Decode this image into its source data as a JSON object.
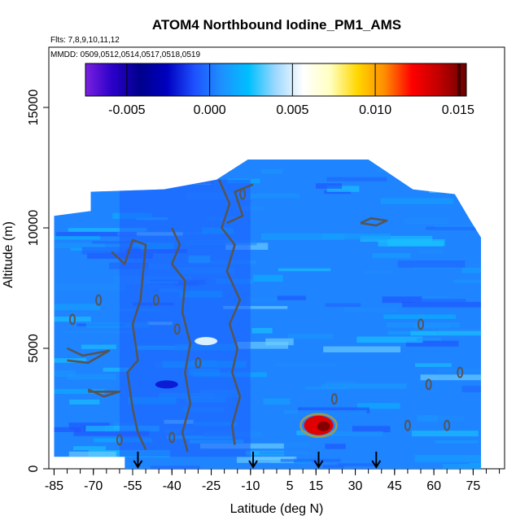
{
  "chart_data": {
    "type": "heatmap",
    "title": "ATOM4 Northbound Iodine_PM1_AMS",
    "flights_label": "Flts: 7,8,9,10,11,12",
    "dates_label": "MMDD: 0509,0512,0514,0517,0518,0519",
    "xlabel": "Latitude (deg N)",
    "ylabel": "Altitude (m)",
    "xlim": [
      -87,
      87
    ],
    "ylim": [
      0,
      17500
    ],
    "x_ticks": [
      -85,
      -70,
      -55,
      -40,
      -25,
      -10,
      5,
      15,
      30,
      45,
      60,
      75
    ],
    "x_minor_step": 5,
    "y_ticks": [
      0,
      5000,
      10000,
      15000
    ],
    "colorbar": {
      "min": -0.0075,
      "max": 0.0155,
      "ticks": [
        -0.005,
        0.0,
        0.005,
        0.01,
        0.015
      ],
      "tick_labels": [
        "-0.005",
        "0.000",
        "0.005",
        "0.010",
        "0.015"
      ],
      "colors": [
        "#7a20e0",
        "#2a00c8",
        "#00008c",
        "#0000c0",
        "#1e50ff",
        "#1e90ff",
        "#00bfff",
        "#9fd8ff",
        "#ffffff",
        "#ffffc0",
        "#ffd700",
        "#ff8c00",
        "#ff0000",
        "#c00000",
        "#6a0000"
      ]
    },
    "background_value": 0.0004,
    "domain": {
      "x_range": [
        -85,
        78
      ],
      "y_range": [
        0,
        12500
      ],
      "lower_gap": {
        "x_range": [
          -85,
          -58
        ],
        "y_max": 500
      }
    },
    "features": [
      {
        "label": "lower-latitude band",
        "x_range": [
          -60,
          -10
        ],
        "y_range": [
          500,
          12000
        ],
        "value": -0.0005
      },
      {
        "label": "high-value feature",
        "x": 16,
        "y": 1800,
        "value": 0.013
      },
      {
        "label": "dark spot",
        "x": -42,
        "y": 3500,
        "value": -0.002
      },
      {
        "label": "white spot",
        "x": -27,
        "y": 5300,
        "value": 0.005
      }
    ],
    "flight_arrows_lat": [
      -53,
      -9,
      16,
      38
    ]
  }
}
